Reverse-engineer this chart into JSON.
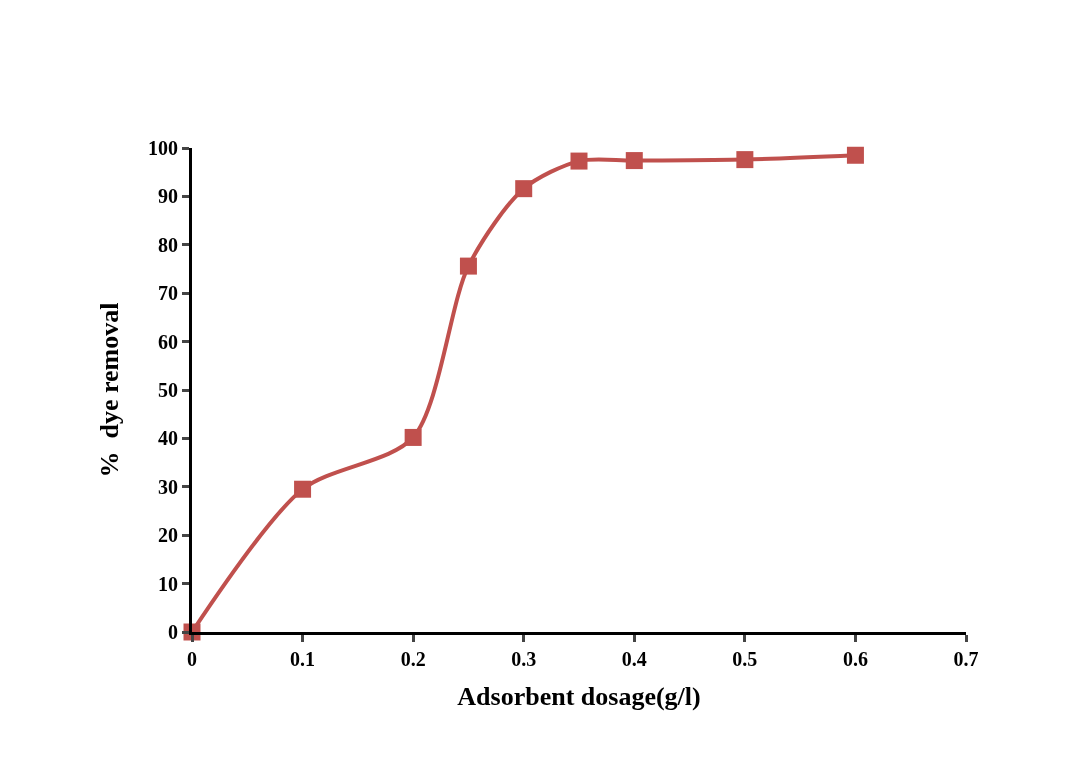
{
  "chart_data": {
    "type": "line",
    "xlabel": "Adsorbent dosage(g/l)",
    "ylabel": "%  dye removal",
    "x": [
      0,
      0.1,
      0.2,
      0.25,
      0.3,
      0.35,
      0.4,
      0.5,
      0.6
    ],
    "series": [
      {
        "color": "#c0504d",
        "values": [
          0,
          29.5,
          40.2,
          75.6,
          91.6,
          97.3,
          97.4,
          97.6,
          98.5
        ]
      }
    ],
    "xlim": [
      0,
      0.7
    ],
    "xticks": [
      0,
      0.1,
      0.2,
      0.3,
      0.4,
      0.5,
      0.6,
      0.7
    ],
    "ylim": [
      0,
      100
    ],
    "yticks": [
      0,
      10,
      20,
      30,
      40,
      50,
      60,
      70,
      80,
      90,
      100
    ],
    "grid": false,
    "legend": false,
    "marker": "square",
    "line_style": "solid"
  }
}
